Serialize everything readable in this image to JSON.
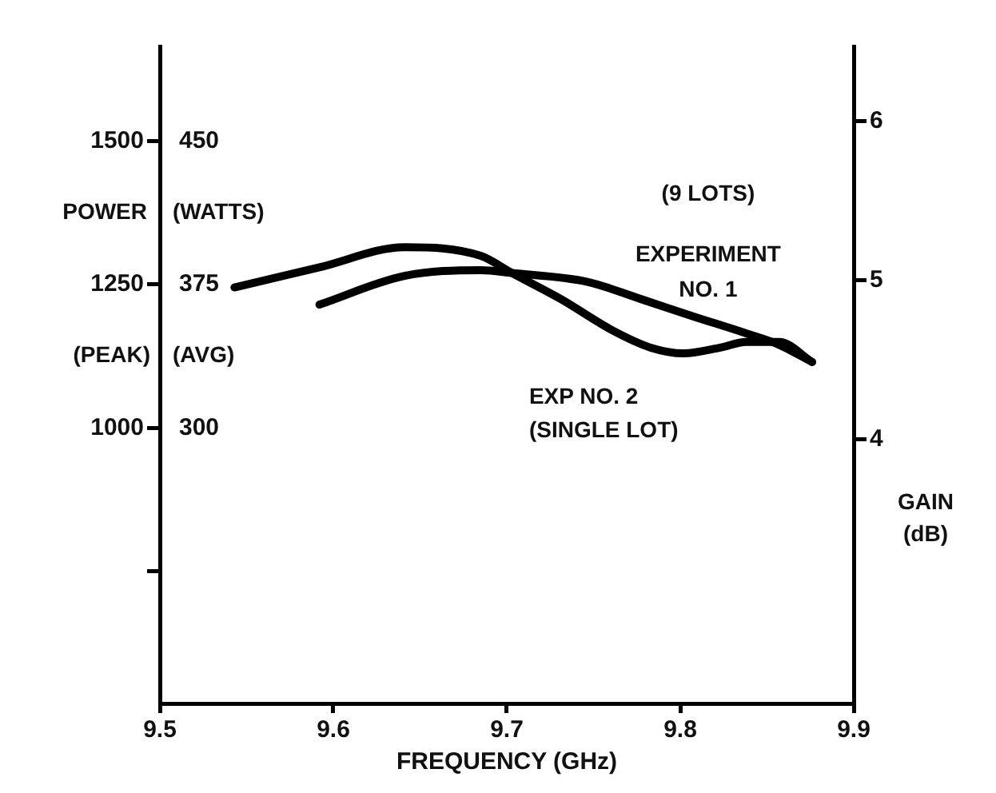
{
  "chart_data": {
    "type": "line",
    "xlabel": "FREQUENCY (GHz)",
    "ylabel": "POWER",
    "y2label": "(WATTS)",
    "y3label": "GAIN (dB)",
    "annotations": [
      "(PEAK)",
      "(AVG)"
    ],
    "series": [
      {
        "name": "(9 LOTS) EXPERIMENT NO. 1",
        "color": "#000000",
        "x": [
          9.592,
          9.641,
          9.685,
          9.703,
          9.746,
          9.777,
          9.807,
          9.838,
          9.857,
          9.876
        ],
        "values": [
          1215,
          1265,
          1275,
          1270,
          1255,
          1225,
          1195,
          1165,
          1145,
          1115
        ]
      },
      {
        "name": "EXP NO. 2 (SINGLE LOT)",
        "color": "#000000",
        "x": [
          9.543,
          9.592,
          9.641,
          9.685,
          9.703,
          9.731,
          9.761,
          9.783,
          9.802,
          9.823,
          9.838,
          9.857,
          9.876
        ],
        "values": [
          1245,
          1280,
          1315,
          1300,
          1270,
          1225,
          1170,
          1140,
          1130,
          1140,
          1150,
          1150,
          1115
        ]
      }
    ],
    "xlim": [
      9.5,
      9.9
    ],
    "xticks": [
      9.5,
      9.6,
      9.7,
      9.8,
      9.9
    ],
    "ylim": [
      520,
      1665
    ],
    "yticks": [
      {
        "value": 750,
        "label": null
      },
      1000,
      1250,
      1500
    ],
    "y2lim": [
      156,
      499.5
    ],
    "y2ticks": [
      300,
      375,
      450
    ],
    "y3lim": [
      2.34,
      6.47
    ],
    "y3ticks": [
      4,
      5,
      6
    ],
    "marker": "none",
    "line_style": "solid",
    "grid": false,
    "legend": false
  }
}
